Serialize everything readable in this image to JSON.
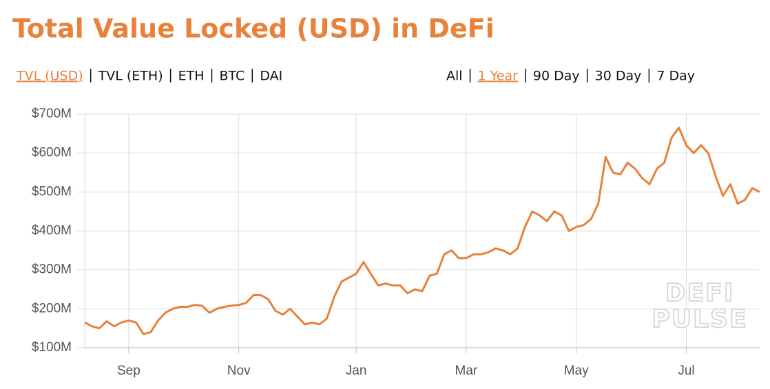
{
  "nav": {
    "metrics": [
      {
        "label": "TVL (USD)",
        "selected": true
      },
      {
        "label": "TVL (ETH)",
        "selected": false
      },
      {
        "label": "ETH",
        "selected": false
      },
      {
        "label": "BTC",
        "selected": false
      },
      {
        "label": "DAI",
        "selected": false
      }
    ],
    "ranges": [
      {
        "label": "All",
        "selected": false
      },
      {
        "label": "1 Year",
        "selected": true
      },
      {
        "label": "90 Day",
        "selected": false
      },
      {
        "label": "30 Day",
        "selected": false
      },
      {
        "label": "7 Day",
        "selected": false
      }
    ]
  },
  "watermark": [
    "DEFI",
    "PULSE"
  ],
  "chart_data": {
    "type": "line",
    "title": "Total Value Locked (USD) in DeFi",
    "color": "#e8813a",
    "grid": true,
    "categories": [
      null,
      null,
      null,
      null,
      null,
      null,
      "Sep",
      null,
      null,
      null,
      null,
      null,
      null,
      null,
      null,
      null,
      null,
      null,
      null,
      null,
      null,
      "Nov",
      null,
      null,
      null,
      null,
      null,
      null,
      null,
      null,
      null,
      null,
      null,
      null,
      null,
      null,
      null,
      "Jan",
      null,
      null,
      null,
      null,
      null,
      null,
      null,
      null,
      null,
      null,
      null,
      null,
      null,
      null,
      "Mar",
      null,
      null,
      null,
      null,
      null,
      null,
      null,
      null,
      null,
      null,
      null,
      null,
      null,
      null,
      "May",
      null,
      null,
      null,
      null,
      null,
      null,
      null,
      null,
      null,
      null,
      null,
      null,
      null,
      null,
      "Jul",
      null,
      null,
      null,
      null,
      null,
      null,
      null,
      null,
      null,
      null
    ],
    "values": [
      165,
      155,
      150,
      168,
      155,
      165,
      170,
      165,
      135,
      140,
      170,
      190,
      200,
      205,
      205,
      210,
      208,
      190,
      200,
      205,
      208,
      210,
      215,
      235,
      235,
      225,
      195,
      185,
      200,
      180,
      160,
      165,
      160,
      175,
      230,
      270,
      280,
      290,
      320,
      290,
      260,
      265,
      260,
      260,
      240,
      250,
      245,
      285,
      290,
      340,
      350,
      330,
      330,
      340,
      340,
      345,
      355,
      350,
      340,
      355,
      410,
      450,
      440,
      425,
      450,
      440,
      400,
      410,
      415,
      430,
      470,
      590,
      550,
      545,
      575,
      560,
      535,
      520,
      560,
      575,
      640,
      665,
      620,
      600,
      620,
      600,
      540,
      490,
      520,
      470,
      480,
      510,
      500
    ],
    "ylim": [
      100,
      700
    ],
    "yticks": [
      {
        "value": 100,
        "label": "$100M"
      },
      {
        "value": 200,
        "label": "$200M"
      },
      {
        "value": 300,
        "label": "$300M"
      },
      {
        "value": 400,
        "label": "$400M"
      },
      {
        "value": 500,
        "label": "$500M"
      },
      {
        "value": 600,
        "label": "$600M"
      },
      {
        "value": 700,
        "label": "$700M"
      }
    ]
  }
}
